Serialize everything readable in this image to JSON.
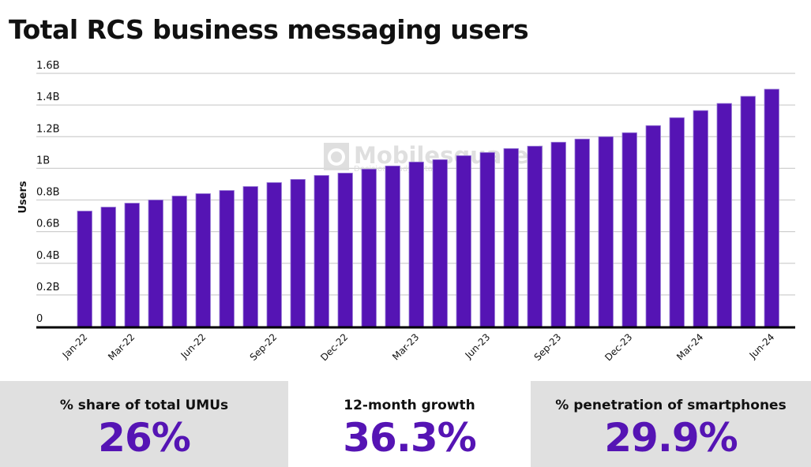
{
  "title": "Total RCS business messaging users",
  "chart_data": {
    "type": "bar",
    "title": "Total RCS business messaging users",
    "xlabel": "",
    "ylabel": "Users",
    "ylim": [
      0,
      1.6
    ],
    "y_unit": "B",
    "y_ticks": [
      "0",
      "0.2B",
      "0.4B",
      "0.6B",
      "0.8B",
      "1B",
      "1.2B",
      "1.4B",
      "1.6B"
    ],
    "y_tick_values": [
      0,
      0.2,
      0.4,
      0.6,
      0.8,
      1.0,
      1.2,
      1.4,
      1.6
    ],
    "grid": true,
    "bar_color": "#5514b4",
    "categories": [
      "Jan-22",
      "Feb-22",
      "Mar-22",
      "Apr-22",
      "May-22",
      "Jun-22",
      "Jul-22",
      "Aug-22",
      "Sep-22",
      "Oct-22",
      "Nov-22",
      "Dec-22",
      "Jan-23",
      "Feb-23",
      "Mar-23",
      "Apr-23",
      "May-23",
      "Jun-23",
      "Jul-23",
      "Aug-23",
      "Sep-23",
      "Oct-23",
      "Nov-23",
      "Dec-23",
      "Jan-24",
      "Feb-24",
      "Mar-24",
      "Apr-24",
      "May-24",
      "Jun-24"
    ],
    "x_tick_labels": [
      "Jan-22",
      "Mar-22",
      "Jun-22",
      "Sep-22",
      "Dec-22",
      "Mar-23",
      "Jun-23",
      "Sep-23",
      "Dec-23",
      "Mar-24",
      "Jun-24"
    ],
    "values": [
      0.73,
      0.755,
      0.78,
      0.8,
      0.825,
      0.84,
      0.86,
      0.885,
      0.91,
      0.93,
      0.955,
      0.97,
      0.995,
      1.015,
      1.04,
      1.055,
      1.08,
      1.1,
      1.125,
      1.14,
      1.165,
      1.185,
      1.2,
      1.225,
      1.27,
      1.32,
      1.365,
      1.41,
      1.455,
      1.5
    ]
  },
  "watermark": {
    "brand": "Mobilesquared",
    "tagline": "Decision ready data"
  },
  "stats": [
    {
      "label": "% share of total UMUs",
      "value": "26%"
    },
    {
      "label": "12-month growth",
      "value": "36.3%"
    },
    {
      "label": "% penetration of smartphones",
      "value": "29.9%"
    }
  ]
}
